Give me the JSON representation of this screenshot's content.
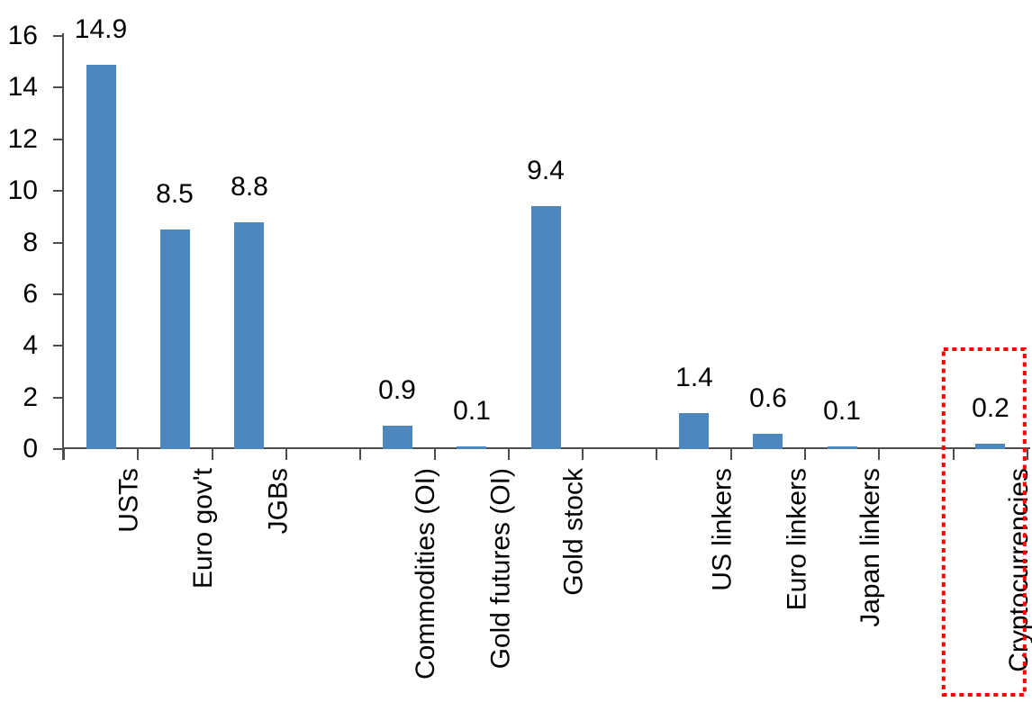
{
  "chart_data": {
    "type": "bar",
    "title": "",
    "xlabel": "",
    "ylabel": "",
    "categories": [
      "USTs",
      "Euro gov't",
      "JGBs",
      "",
      "Commodities (OI)",
      "Gold futures (OI)",
      "Gold stock",
      "",
      "US linkers",
      "Euro linkers",
      "Japan linkers",
      "",
      "Cryptocurrencies"
    ],
    "values": [
      14.9,
      8.5,
      8.8,
      null,
      0.9,
      0.1,
      9.4,
      null,
      1.4,
      0.6,
      0.1,
      null,
      0.2
    ],
    "value_labels": [
      "14.9",
      "8.5",
      "8.8",
      "",
      "0.9",
      "0.1",
      "9.4",
      "",
      "1.4",
      "0.6",
      "0.1",
      "",
      "0.2"
    ],
    "ylim": [
      0,
      16
    ],
    "yticks": [
      0,
      2,
      4,
      6,
      8,
      10,
      12,
      14,
      16
    ],
    "ytick_labels": [
      "0",
      "2",
      "4",
      "6",
      "8",
      "10",
      "12",
      "14",
      "16"
    ],
    "grid": false,
    "legend": null,
    "bar_color": "#4E87BD",
    "axis_color": "#4d4d4d",
    "text_color": "#000000",
    "highlight": {
      "category": "Cryptocurrencies",
      "style": "dotted-box",
      "color": "#FF0000"
    }
  }
}
